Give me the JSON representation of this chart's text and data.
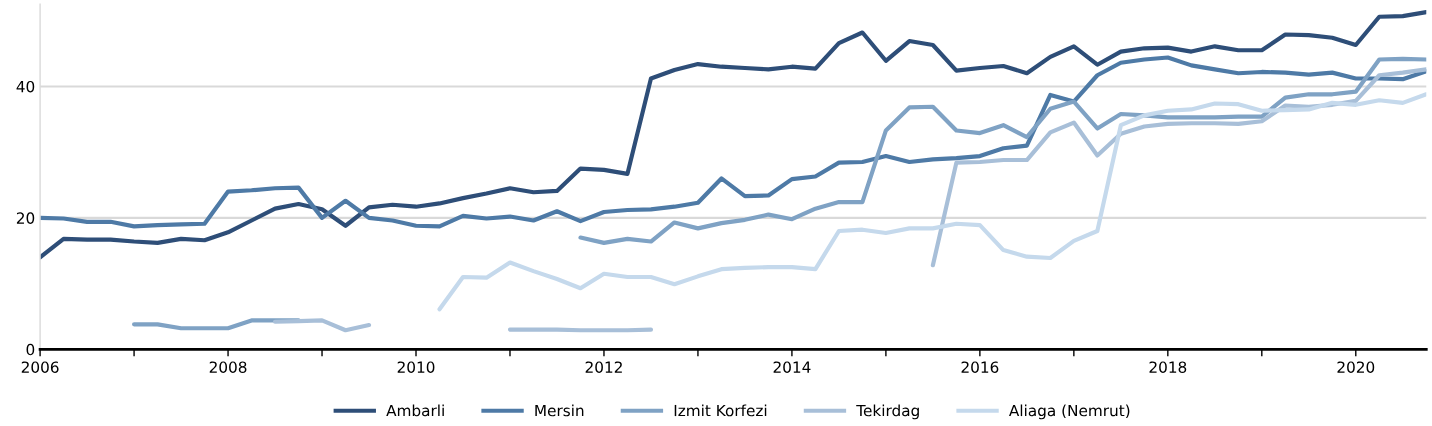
{
  "chart_data": {
    "type": "line",
    "x": [
      2006,
      2006.25,
      2006.5,
      2006.75,
      2007,
      2007.25,
      2007.5,
      2007.75,
      2008,
      2008.25,
      2008.5,
      2008.75,
      2009,
      2009.25,
      2009.5,
      2009.75,
      2010,
      2010.25,
      2010.5,
      2010.75,
      2011,
      2011.25,
      2011.5,
      2011.75,
      2012,
      2012.25,
      2012.5,
      2012.75,
      2013,
      2013.25,
      2013.5,
      2013.75,
      2014,
      2014.25,
      2014.5,
      2014.75,
      2015,
      2015.25,
      2015.5,
      2015.75,
      2016,
      2016.25,
      2016.5,
      2016.75,
      2017,
      2017.25,
      2017.5,
      2017.75,
      2018,
      2018.25,
      2018.5,
      2018.75,
      2019,
      2019.25,
      2019.5,
      2019.75,
      2020,
      2020.25,
      2020.5,
      2020.75
    ],
    "series": [
      {
        "name": "Ambarli",
        "color": "#2e4e78",
        "values": [
          14.0,
          16.8,
          16.7,
          16.7,
          16.4,
          16.2,
          16.8,
          16.6,
          17.8,
          19.6,
          21.4,
          22.1,
          21.3,
          18.8,
          21.6,
          22.0,
          21.7,
          22.2,
          23.0,
          23.7,
          24.5,
          23.9,
          24.1,
          27.5,
          27.3,
          26.7,
          41.2,
          42.5,
          43.4,
          43.0,
          42.8,
          42.6,
          43.0,
          42.7,
          46.6,
          48.2,
          43.9,
          46.9,
          46.3,
          42.4,
          42.8,
          43.1,
          42.0,
          44.5,
          46.1,
          43.3,
          45.3,
          45.8,
          45.9,
          45.3,
          46.1,
          45.5,
          45.5,
          47.9,
          47.8,
          47.4,
          46.3,
          50.6,
          50.7,
          51.3
        ]
      },
      {
        "name": "Mersin",
        "color": "#4e7aa6",
        "values": [
          20.0,
          19.9,
          19.4,
          19.4,
          18.7,
          18.9,
          19.0,
          19.1,
          24.0,
          24.2,
          24.5,
          24.6,
          20.0,
          22.6,
          20.0,
          19.6,
          18.8,
          18.7,
          20.3,
          19.9,
          20.2,
          19.6,
          21.0,
          19.5,
          20.9,
          21.2,
          21.3,
          21.7,
          22.3,
          26.0,
          23.3,
          23.4,
          25.9,
          26.3,
          28.4,
          28.5,
          29.4,
          28.5,
          28.9,
          29.1,
          29.4,
          30.6,
          31.0,
          38.7,
          37.7,
          41.7,
          43.6,
          44.1,
          44.4,
          43.2,
          42.6,
          42.0,
          42.2,
          42.1,
          41.8,
          42.1,
          41.2,
          41.2,
          41.1,
          42.3
        ]
      },
      {
        "name": "Izmit Korfezi",
        "color": "#7fa2c4",
        "values": [
          null,
          null,
          null,
          null,
          3.8,
          3.8,
          3.2,
          3.2,
          3.2,
          4.4,
          4.4,
          4.4,
          null,
          null,
          null,
          null,
          null,
          null,
          null,
          null,
          null,
          null,
          null,
          17.0,
          16.2,
          16.8,
          16.4,
          19.3,
          18.4,
          19.2,
          19.7,
          20.5,
          19.8,
          21.4,
          22.4,
          22.4,
          33.3,
          36.8,
          36.9,
          33.3,
          32.9,
          34.1,
          32.3,
          36.6,
          37.7,
          33.6,
          35.8,
          35.6,
          35.3,
          35.3,
          35.3,
          35.4,
          35.4,
          38.3,
          38.8,
          38.8,
          39.2,
          44.1,
          44.2,
          44.1
        ]
      },
      {
        "name": "Tekirdag",
        "color": "#a8bfd8",
        "values": [
          null,
          null,
          null,
          null,
          null,
          null,
          null,
          null,
          null,
          null,
          4.2,
          4.3,
          4.4,
          2.9,
          3.7,
          null,
          null,
          null,
          null,
          null,
          3.0,
          3.0,
          3.0,
          2.9,
          2.9,
          2.9,
          3.0,
          null,
          null,
          null,
          null,
          null,
          null,
          null,
          null,
          null,
          null,
          null,
          12.8,
          28.4,
          28.5,
          28.8,
          28.8,
          33.0,
          34.5,
          29.5,
          32.8,
          33.9,
          34.3,
          34.4,
          34.4,
          34.3,
          34.7,
          37.1,
          36.9,
          37.2,
          37.8,
          41.7,
          42.1,
          42.6
        ]
      },
      {
        "name": "Aliaga (Nemrut)",
        "color": "#c5d9ec",
        "values": [
          null,
          null,
          null,
          null,
          null,
          null,
          null,
          null,
          null,
          null,
          null,
          null,
          null,
          null,
          null,
          null,
          null,
          6.1,
          11.0,
          10.9,
          13.2,
          11.9,
          10.7,
          9.3,
          11.5,
          11.0,
          11.0,
          9.9,
          11.1,
          12.2,
          12.4,
          12.5,
          12.5,
          12.2,
          18.0,
          18.2,
          17.7,
          18.4,
          18.4,
          19.1,
          18.9,
          15.1,
          14.1,
          13.9,
          16.5,
          18.0,
          34.1,
          35.6,
          36.3,
          36.5,
          37.4,
          37.3,
          36.3,
          36.4,
          36.5,
          37.5,
          37.2,
          37.9,
          37.5,
          38.8
        ]
      }
    ],
    "xlim": [
      2006,
      2020.75
    ],
    "xticks": [
      2006,
      {
        "value": 2007,
        "label": null
      },
      2008,
      {
        "value": 2009,
        "label": null
      },
      2010,
      {
        "value": 2011,
        "label": null
      },
      2012,
      {
        "value": 2013,
        "label": null
      },
      2014,
      {
        "value": 2015,
        "label": null
      },
      2016,
      {
        "value": 2017,
        "label": null
      },
      2018,
      {
        "value": 2019,
        "label": null
      },
      2020
    ],
    "ylim": [
      0,
      52.5
    ],
    "yticks": [
      0,
      20,
      40
    ],
    "grid": "y",
    "legend": "bottom",
    "marker": "none",
    "line_style": "solid"
  }
}
